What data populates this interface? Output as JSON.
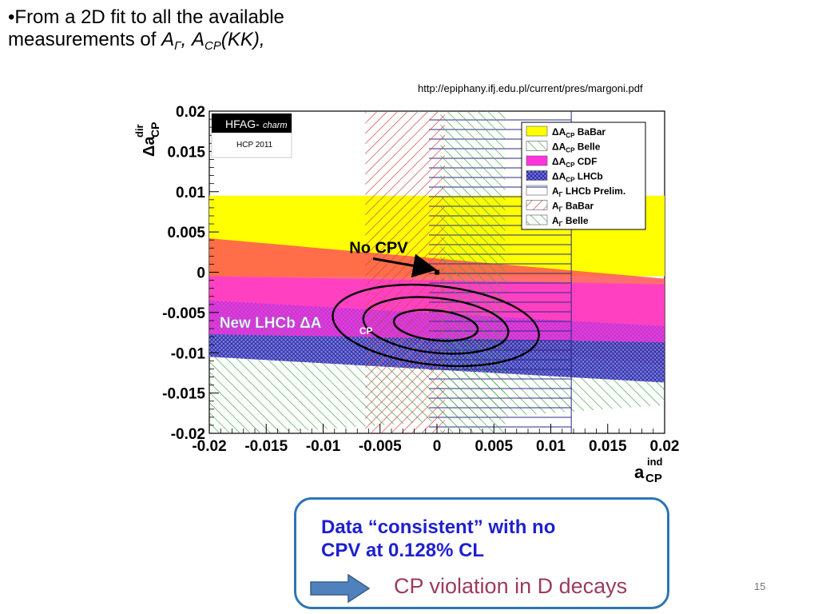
{
  "slide": {
    "bullet_line1": "•From a 2D fit to all the available",
    "bullet_line2_prefix": "measurements of ",
    "bullet_a": "A",
    "bullet_gamma": "Γ",
    "bullet_sep": ", ",
    "bullet_a2": "A",
    "bullet_cp": "CP",
    "bullet_kk": "(KK),",
    "url": "http://epiphany.ifj.edu.pl/current/pres/margoni.pdf",
    "callout_line1": "Data “consistent” with no",
    "callout_line2": "CPV at 0.128% CL",
    "footer_text": "CP violation in D decays",
    "page_number": "15",
    "accent": "#2e75b6"
  },
  "chart_data": {
    "type": "contour",
    "xlabel_main": "a",
    "xlabel_sup": "ind",
    "xlabel_sub": "CP",
    "ylabel_main": "Δa",
    "ylabel_sup": "dir",
    "ylabel_sub": "CP",
    "xlim": [
      -0.02,
      0.02
    ],
    "ylim": [
      -0.02,
      0.02
    ],
    "xticks": [
      "-0.02",
      "-0.015",
      "-0.01",
      "-0.005",
      "0",
      "0.005",
      "0.01",
      "0.015",
      "0.02"
    ],
    "yticks": [
      "0.02",
      "0.015",
      "0.01",
      "0.005",
      "0",
      "-0.005",
      "-0.01",
      "-0.015",
      "-0.02"
    ],
    "tag_main": "HFAG-",
    "tag_italic": "charm",
    "tag_sub": "HCP 2011",
    "legend": [
      {
        "symbol": "ΔA",
        "sub": "CP",
        "name": "BaBar",
        "style": "yellow"
      },
      {
        "symbol": "ΔA",
        "sub": "CP",
        "name": "Belle",
        "style": "green-hatch"
      },
      {
        "symbol": "ΔA",
        "sub": "CP",
        "name": "CDF",
        "style": "magenta"
      },
      {
        "symbol": "ΔA",
        "sub": "CP",
        "name": "LHCb",
        "style": "blue-cross"
      },
      {
        "symbol": "A",
        "sub": "Γ",
        "name": "LHCb Prelim.",
        "style": "blue-hlines"
      },
      {
        "symbol": "A",
        "sub": "Γ",
        "name": "BaBar",
        "style": "red-hatch"
      },
      {
        "symbol": "A",
        "sub": "Γ",
        "name": "Belle",
        "style": "green-hatch"
      }
    ],
    "bands": [
      {
        "name": "ΔA_CP BaBar",
        "kind": "y-band",
        "y": [
          -0.0005,
          0.0095
        ],
        "color": "#ffff00"
      },
      {
        "name": "A_Γ BaBar",
        "kind": "x-band",
        "x": [
          -0.0063,
          0.0007
        ],
        "color": "#cc4444"
      },
      {
        "name": "A_Γ LHCb Prelim.",
        "kind": "x-band",
        "x": [
          -0.0007,
          0.0118
        ],
        "color": "#3333aa"
      },
      {
        "name": "A_Γ Belle",
        "kind": "x-band",
        "x": [
          0.0003,
          0.006
        ],
        "color": "#44aa44"
      },
      {
        "name": "ΔA_CP Belle",
        "kind": "tilted",
        "left": [
          -0.008,
          -0.0205
        ],
        "right": [
          -0.0045,
          -0.0165
        ],
        "color": "#44aa44"
      },
      {
        "name": "ΔA_CP CDF",
        "kind": "tilted",
        "left": [
          -0.0005,
          -0.0077
        ],
        "right": [
          -0.0015,
          -0.0087
        ],
        "color": "#ff33dd"
      },
      {
        "name": "ΔA_CP LHCb",
        "kind": "tilted",
        "left": [
          -0.0035,
          -0.0105
        ],
        "right": [
          -0.0067,
          -0.0137
        ],
        "color": "#2222aa"
      },
      {
        "name": "fit band",
        "kind": "tilted",
        "left": [
          0.0042,
          -0.0065
        ],
        "right": [
          -0.0008,
          -0.0115
        ],
        "color": "#ff5555"
      }
    ],
    "best_fit": {
      "x": -0.0001,
      "y": -0.0066
    },
    "contours": [
      {
        "rx": 0.0037,
        "ry": 0.00185
      },
      {
        "rx": 0.0064,
        "ry": 0.0034
      },
      {
        "rx": 0.0091,
        "ry": 0.0049
      }
    ],
    "no_cpv_point": {
      "x": 0,
      "y": 0
    },
    "annotations": [
      {
        "text": "No CPV",
        "x": -0.0077,
        "y": 0.0024
      },
      {
        "text": "New LHCb ΔA",
        "sub": "CP",
        "x": -0.0191,
        "y": -0.0069
      }
    ]
  }
}
